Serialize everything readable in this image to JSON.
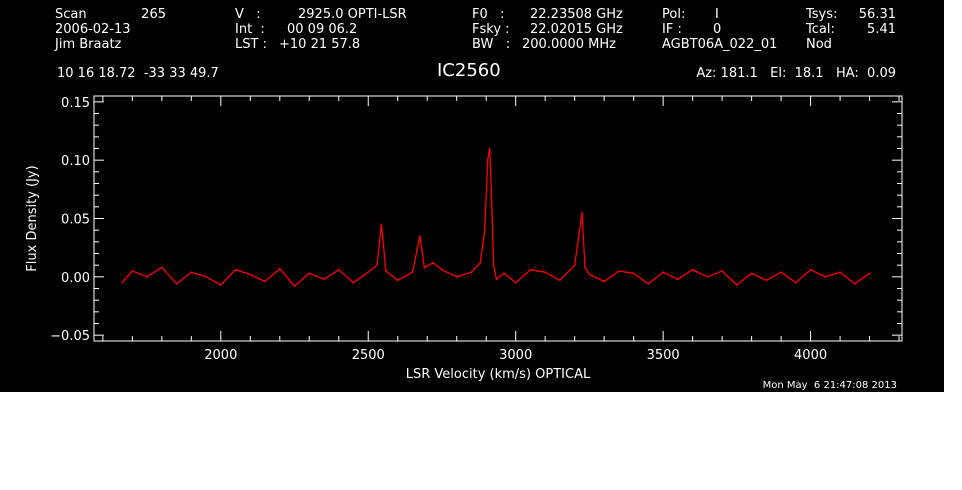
{
  "header": {
    "scan_label": "Scan",
    "scan_value": "265",
    "date": "2006-02-13",
    "observer": "Jim Braatz",
    "v_label": "V   :",
    "v_value": "2925.0 OPTI-LSR",
    "int_label": "Int  :",
    "int_value": "00 09 06.2",
    "lst_label": "LST :",
    "lst_value": "+10 21 57.8",
    "f0_label": "F0   :",
    "f0_value": "22.23508 GHz",
    "fsky_label": "Fsky :",
    "fsky_value": "22.02015 GHz",
    "bw_label": "BW   :",
    "bw_value": "200.0000 MHz",
    "pol_label": "Pol:",
    "pol_value": "I",
    "if_label": "IF :",
    "if_value": "0",
    "project": "AGBT06A_022_01",
    "tsys_label": "Tsys:",
    "tsys_value": "56.31",
    "tcal_label": "Tcal:",
    "tcal_value": "5.41",
    "mode": "Nod",
    "coords": "10 16 18.72  -33 33 49.7",
    "source": "IC2560",
    "pointing": "Az: 181.1   El:  18.1   HA:  0.09",
    "timestamp": "Mon May  6 21:47:08 2013"
  },
  "chart_data": {
    "type": "line",
    "title": "IC2560",
    "xlabel": "LSR Velocity (km/s) OPTICAL",
    "ylabel": "Flux Density (Jy)",
    "xlim": [
      1570,
      4310
    ],
    "ylim": [
      -0.055,
      0.155
    ],
    "xticks": [
      2000,
      2500,
      3000,
      3500,
      4000
    ],
    "xtick_labels": [
      "2000",
      "2500",
      "3000",
      "3500",
      "4000"
    ],
    "yticks": [
      -0.05,
      0.0,
      0.05,
      0.1,
      0.15
    ],
    "ytick_labels": [
      "−0.05",
      "0.00",
      "0.05",
      "0.10",
      "0.15"
    ],
    "grid": false,
    "line_color": "#ff0000",
    "axis_color": "#ffffff",
    "background": "#000000",
    "series": [
      {
        "x": [
          1665,
          1700,
          1750,
          1800,
          1850,
          1900,
          1950,
          2000,
          2050,
          2100,
          2150,
          2200,
          2250,
          2300,
          2350,
          2400,
          2450,
          2500,
          2530,
          2545,
          2560,
          2600,
          2650,
          2675,
          2690,
          2720,
          2750,
          2800,
          2850,
          2880,
          2895,
          2905,
          2912,
          2918,
          2925,
          2935,
          2960,
          3000,
          3050,
          3100,
          3150,
          3200,
          3225,
          3235,
          3250,
          3300,
          3350,
          3400,
          3450,
          3500,
          3550,
          3600,
          3650,
          3700,
          3750,
          3800,
          3850,
          3900,
          3950,
          4000,
          4050,
          4100,
          4150,
          4200
        ],
        "y": [
          -0.005,
          0.005,
          0.0,
          0.008,
          -0.006,
          0.004,
          0.0,
          -0.007,
          0.006,
          0.002,
          -0.004,
          0.007,
          -0.008,
          0.003,
          -0.002,
          0.006,
          -0.005,
          0.004,
          0.01,
          0.045,
          0.005,
          -0.003,
          0.004,
          0.035,
          0.008,
          0.012,
          0.006,
          0.0,
          0.004,
          0.012,
          0.04,
          0.1,
          0.11,
          0.07,
          0.01,
          -0.002,
          0.003,
          -0.005,
          0.006,
          0.004,
          -0.003,
          0.01,
          0.055,
          0.008,
          0.002,
          -0.004,
          0.005,
          0.003,
          -0.006,
          0.004,
          -0.002,
          0.006,
          0.0,
          0.005,
          -0.007,
          0.003,
          -0.003,
          0.004,
          -0.005,
          0.006,
          0.0,
          0.004,
          -0.006,
          0.003
        ]
      }
    ]
  }
}
